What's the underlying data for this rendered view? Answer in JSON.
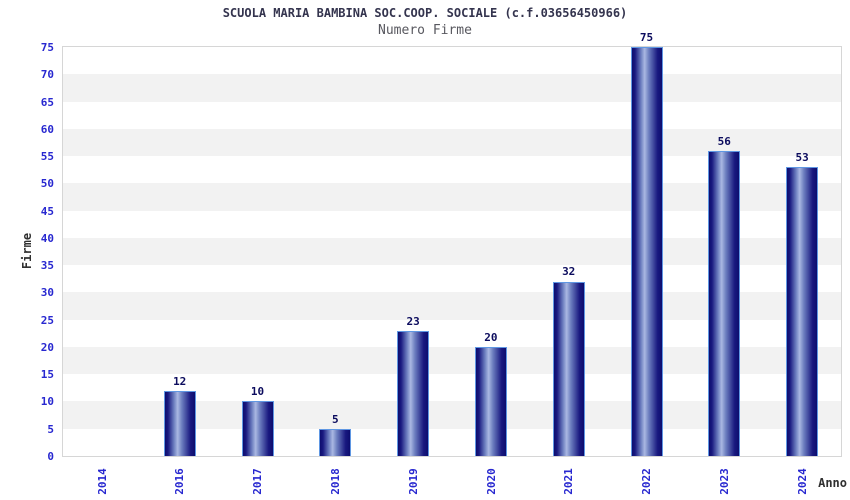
{
  "chart_data": {
    "type": "bar",
    "title": "SCUOLA MARIA BAMBINA SOC.COOP. SOCIALE (c.f.03656450966)",
    "subtitle": "Numero Firme",
    "xlabel": "Anno",
    "ylabel": "Firme",
    "categories": [
      "2014",
      "2016",
      "2017",
      "2018",
      "2019",
      "2020",
      "2021",
      "2022",
      "2023",
      "2024"
    ],
    "values": [
      0,
      12,
      10,
      5,
      23,
      20,
      32,
      75,
      56,
      53
    ],
    "ylim": [
      0,
      75
    ],
    "ytick_step": 5,
    "yticks": [
      0,
      5,
      10,
      15,
      20,
      25,
      30,
      35,
      40,
      45,
      50,
      55,
      60,
      65,
      70,
      75
    ],
    "legend": "none",
    "grid": "alternating horizontal bands every 5 units",
    "colors": {
      "bar_dark": "#0d0d6e",
      "bar_light": "#aab8e2",
      "bar_border": "#5f97e3",
      "tick_label": "#2828d0",
      "value_label": "#0c0c5e",
      "title": "#34344e",
      "subtitle": "#58585f",
      "axis_title": "#303030",
      "band_gray": "#f2f2f2",
      "band_white": "#ffffff",
      "plot_border": "#d6d6d6"
    }
  }
}
